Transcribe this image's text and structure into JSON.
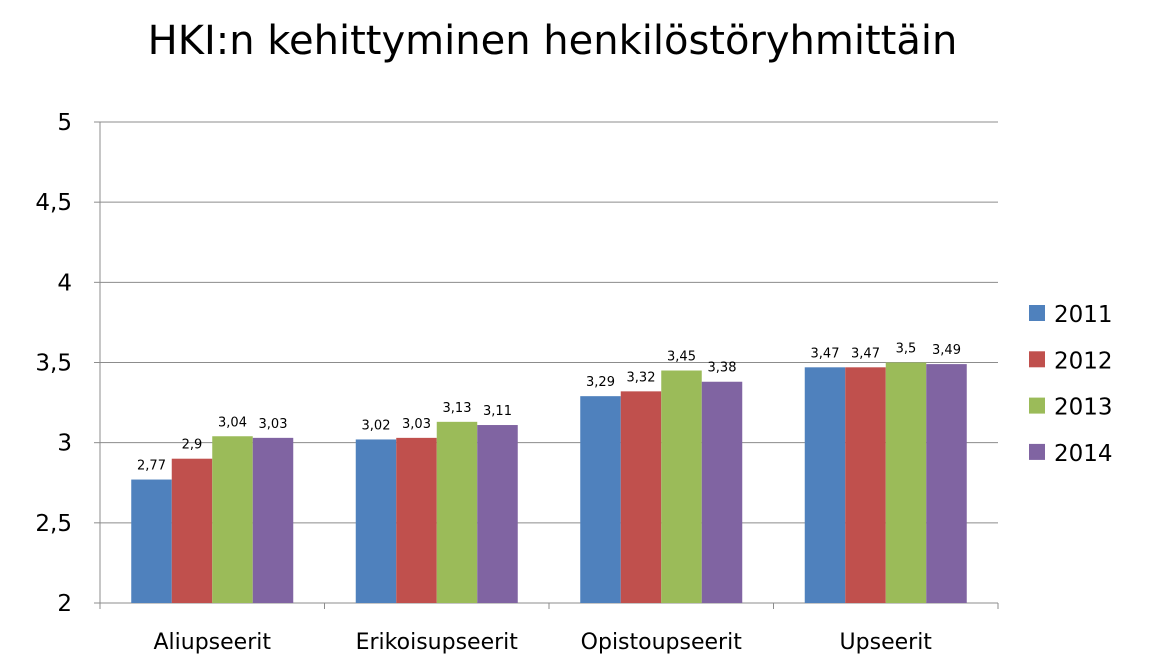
{
  "chart_data": {
    "type": "bar",
    "title": "HKI:n kehittyminen henkilöstöryhmittäin",
    "xlabel": "",
    "ylabel": "",
    "categories": [
      "Aliupseerit",
      "Erikoisupseerit",
      "Opistoupseerit",
      "Upseerit"
    ],
    "series": [
      {
        "name": "2011",
        "color": "#4f81bd",
        "values": [
          2.77,
          3.02,
          3.29,
          3.47
        ],
        "labels": [
          "2,77",
          "3,02",
          "3,29",
          "3,47"
        ]
      },
      {
        "name": "2012",
        "color": "#c0504d",
        "values": [
          2.9,
          3.03,
          3.32,
          3.47
        ],
        "labels": [
          "2,9",
          "3,03",
          "3,32",
          "3,47"
        ]
      },
      {
        "name": "2013",
        "color": "#9bbb59",
        "values": [
          3.04,
          3.13,
          3.45,
          3.5
        ],
        "labels": [
          "3,04",
          "3,13",
          "3,45",
          "3,5"
        ]
      },
      {
        "name": "2014",
        "color": "#8064a2",
        "values": [
          3.03,
          3.11,
          3.38,
          3.49
        ],
        "labels": [
          "3,03",
          "3,11",
          "3,38",
          "3,49"
        ]
      }
    ],
    "ylim": [
      2,
      5
    ],
    "yticks": [
      2,
      2.5,
      3,
      3.5,
      4,
      4.5,
      5
    ],
    "ytick_labels": [
      "2",
      "2,5",
      "3",
      "3,5",
      "4",
      "4,5",
      "5"
    ],
    "grid": true,
    "legend_position": "right"
  }
}
